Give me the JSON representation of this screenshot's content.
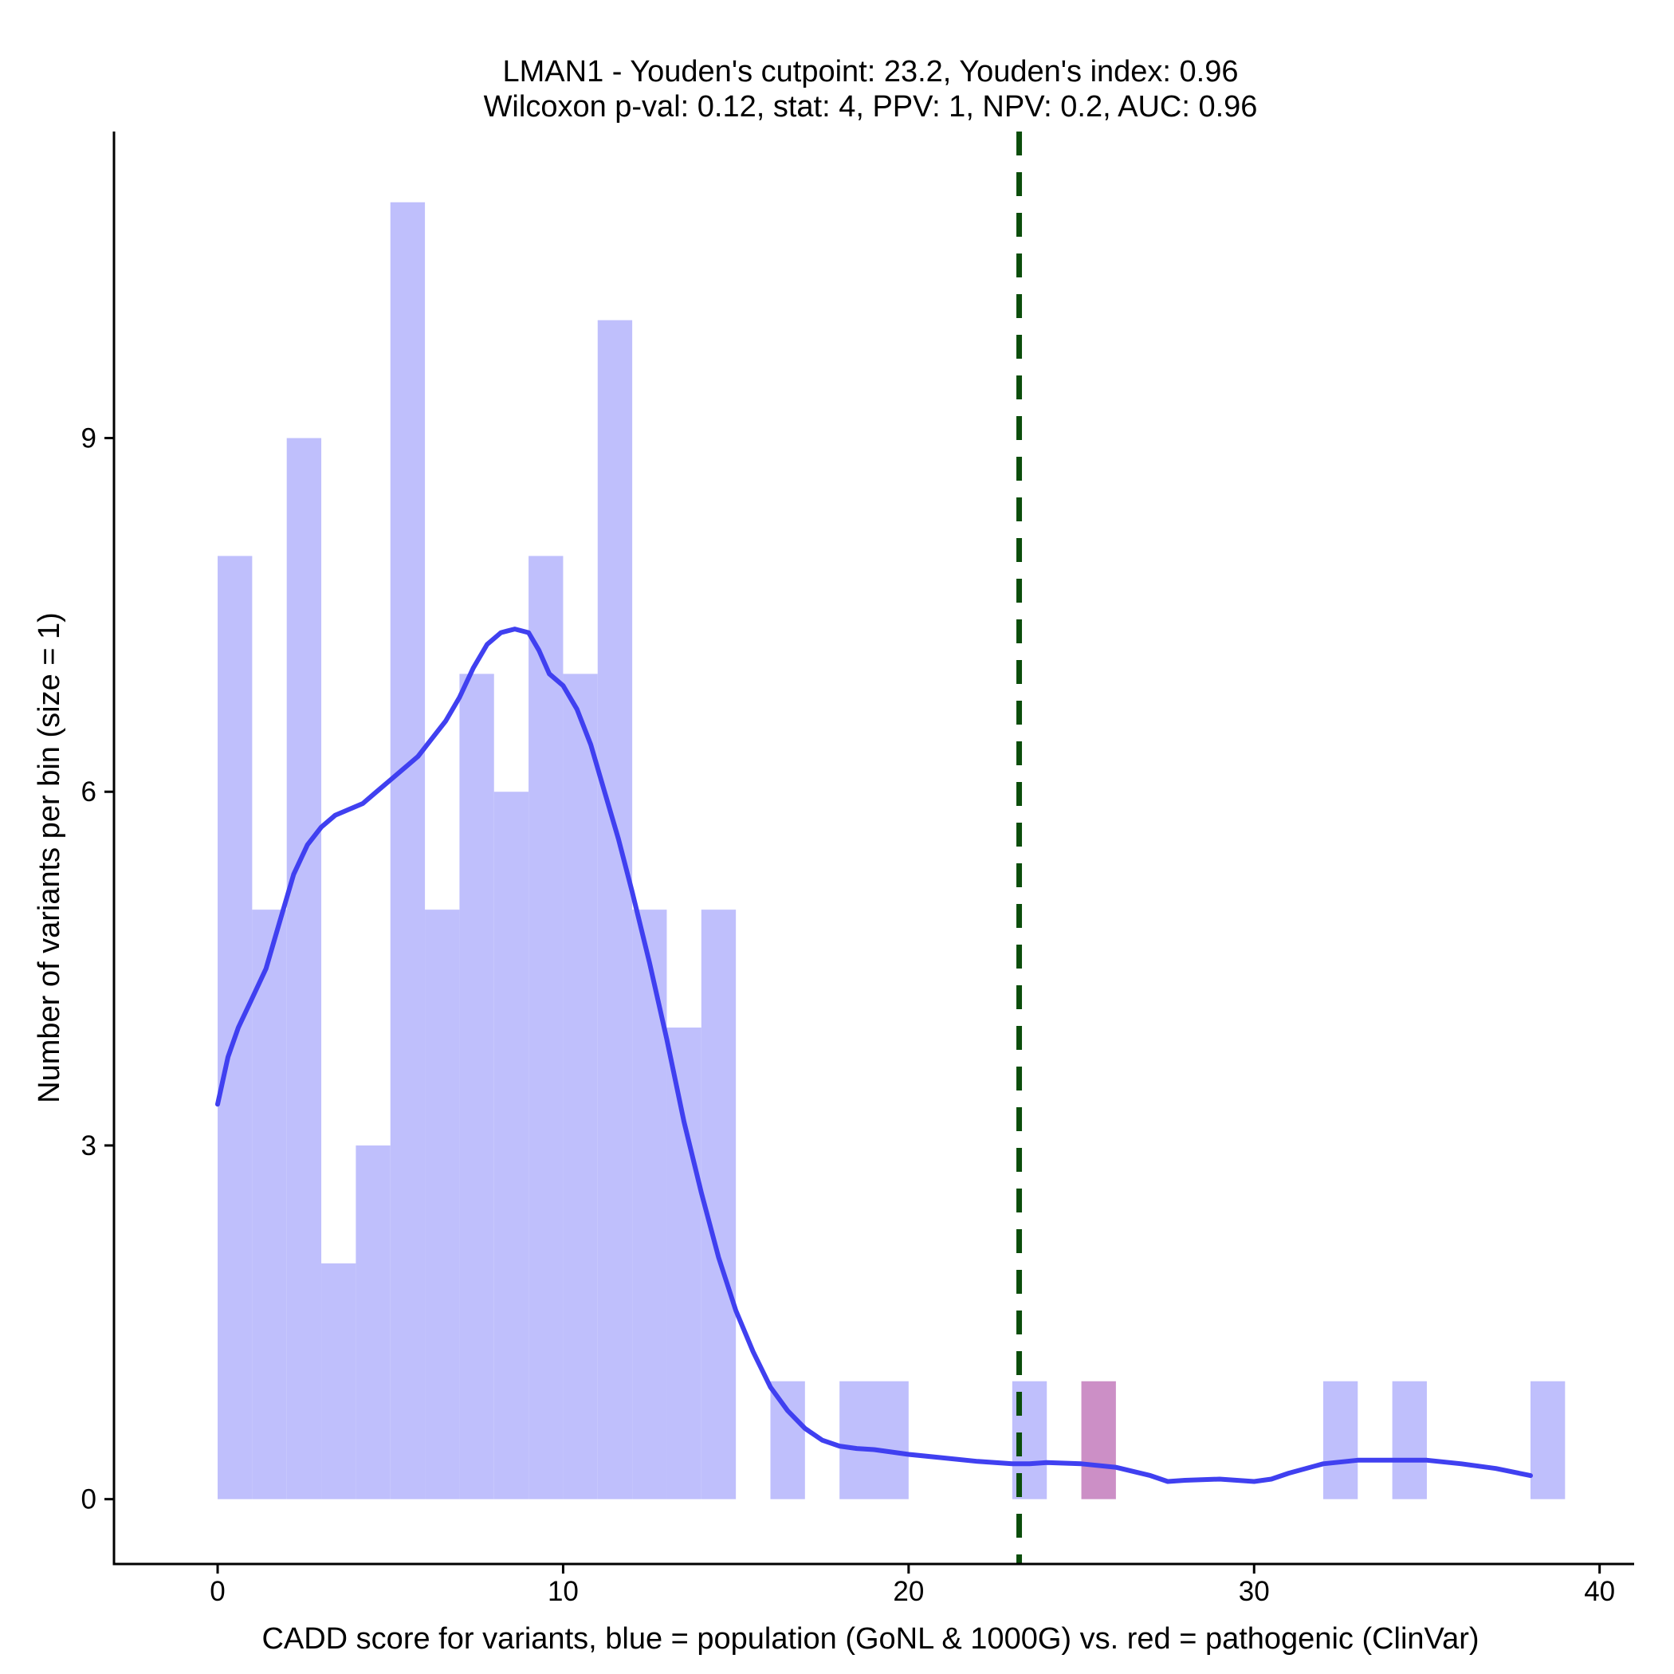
{
  "chart_data": {
    "type": "bar",
    "title_line1": "LMAN1 - Youden's cutpoint: 23.2, Youden's index: 0.96",
    "title_line2": "Wilcoxon p-val: 0.12, stat: 4, PPV: 1, NPV: 0.2, AUC: 0.96",
    "xlabel": "CADD score for variants, blue = population (GoNL & 1000G) vs. red = pathogenic (ClinVar)",
    "ylabel": "Number of variants per bin (size = 1)",
    "xlim": [
      -3,
      41
    ],
    "ylim": [
      -0.55,
      11.6
    ],
    "x_ticks": [
      0,
      10,
      20,
      30,
      40
    ],
    "y_ticks": [
      0,
      3,
      6,
      9
    ],
    "bin_width": 1,
    "cutpoint": 23.2,
    "colors": {
      "population": "#bfbffc",
      "pathogenic": "#cc8fc6",
      "density": "#4040f0",
      "cutpoint": "#0b4d0b"
    },
    "series": [
      {
        "name": "population",
        "bin_starts": [
          0,
          1,
          2,
          3,
          4,
          5,
          6,
          7,
          8,
          9,
          10,
          11,
          12,
          13,
          14,
          15,
          16,
          17,
          18,
          19,
          20,
          21,
          22,
          23,
          24,
          25,
          26,
          27,
          28,
          29,
          30,
          31,
          32,
          33,
          34,
          35,
          36,
          37,
          38
        ],
        "values": [
          8,
          5,
          9,
          2,
          3,
          11,
          5,
          7,
          6,
          8,
          7,
          10,
          5,
          4,
          5,
          0,
          1,
          0,
          1,
          1,
          0,
          0,
          0,
          1,
          0,
          0,
          0,
          0,
          0,
          0,
          0,
          0,
          1,
          0,
          1,
          0,
          0,
          0,
          1
        ]
      },
      {
        "name": "pathogenic",
        "bin_starts": [
          25
        ],
        "values": [
          1
        ]
      }
    ],
    "density_curve": {
      "x": [
        0,
        0.3,
        0.6,
        1,
        1.4,
        1.8,
        2.2,
        2.6,
        3,
        3.4,
        3.8,
        4.2,
        4.6,
        5,
        5.4,
        5.8,
        6.2,
        6.6,
        7,
        7.4,
        7.8,
        8.2,
        8.6,
        9,
        9.3,
        9.6,
        10,
        10.4,
        10.8,
        11.2,
        11.6,
        12,
        12.5,
        13,
        13.5,
        14,
        14.5,
        15,
        15.5,
        16,
        16.5,
        17,
        17.5,
        18,
        18.5,
        19,
        19.5,
        20,
        21,
        22,
        23,
        23.5,
        24,
        25,
        26,
        27,
        27.5,
        28,
        29,
        30,
        30.5,
        31,
        32,
        33,
        34,
        35,
        36,
        37,
        38
      ],
      "y": [
        3.35,
        3.75,
        4.0,
        4.25,
        4.5,
        4.9,
        5.3,
        5.55,
        5.7,
        5.8,
        5.85,
        5.9,
        6.0,
        6.1,
        6.2,
        6.3,
        6.45,
        6.6,
        6.8,
        7.05,
        7.25,
        7.35,
        7.38,
        7.35,
        7.2,
        7.0,
        6.9,
        6.7,
        6.4,
        6.0,
        5.6,
        5.15,
        4.55,
        3.9,
        3.2,
        2.6,
        2.05,
        1.6,
        1.25,
        0.95,
        0.75,
        0.6,
        0.5,
        0.45,
        0.43,
        0.42,
        0.4,
        0.38,
        0.35,
        0.32,
        0.3,
        0.3,
        0.31,
        0.3,
        0.27,
        0.2,
        0.15,
        0.16,
        0.17,
        0.15,
        0.17,
        0.22,
        0.3,
        0.33,
        0.33,
        0.33,
        0.3,
        0.26,
        0.2
      ]
    }
  }
}
